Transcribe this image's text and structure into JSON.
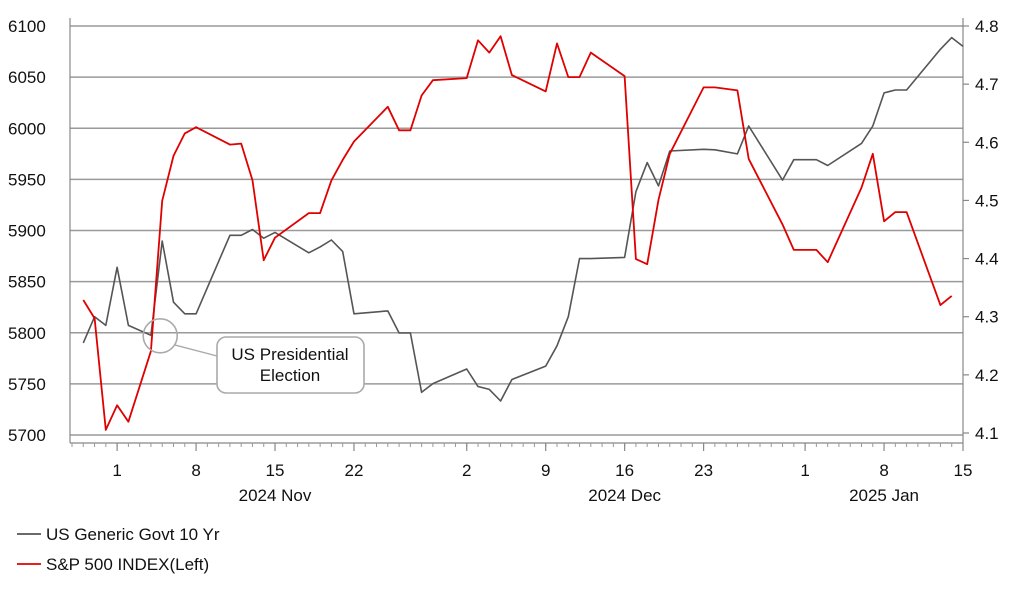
{
  "chart_data": {
    "type": "line",
    "title": "",
    "x_axis": {
      "day_labels": [
        {
          "date": "2024-11-01",
          "label": "1"
        },
        {
          "date": "2024-11-08",
          "label": "8"
        },
        {
          "date": "2024-11-15",
          "label": "15"
        },
        {
          "date": "2024-11-22",
          "label": "22"
        },
        {
          "date": "2024-12-02",
          "label": "2"
        },
        {
          "date": "2024-12-09",
          "label": "9"
        },
        {
          "date": "2024-12-16",
          "label": "16"
        },
        {
          "date": "2024-12-23",
          "label": "23"
        },
        {
          "date": "2025-01-01",
          "label": "1"
        },
        {
          "date": "2025-01-08",
          "label": "8"
        },
        {
          "date": "2025-01-15",
          "label": "15"
        }
      ],
      "month_labels": [
        {
          "date": "2024-11-15",
          "label": "2024 Nov"
        },
        {
          "date": "2024-12-16",
          "label": "2024 Dec"
        },
        {
          "date": "2025-01-08",
          "label": "2025 Jan"
        }
      ],
      "range": [
        "2024-10-28",
        "2025-01-15"
      ]
    },
    "y_left": {
      "ticks": [
        5700,
        5750,
        5800,
        5850,
        5900,
        5950,
        6000,
        6050,
        6100
      ],
      "range": [
        5690,
        6110
      ],
      "grid": true
    },
    "y_right": {
      "ticks": [
        4.1,
        4.2,
        4.3,
        4.4,
        4.5,
        4.6,
        4.7,
        4.8
      ],
      "range": [
        4.093,
        4.818
      ]
    },
    "series": [
      {
        "name": "US Generic Govt 10 Yr",
        "axis": "right",
        "color": "#555555",
        "points": [
          [
            "2024-10-29",
            4.255
          ],
          [
            "2024-10-30",
            4.3
          ],
          [
            "2024-10-31",
            4.285
          ],
          [
            "2024-11-01",
            4.385
          ],
          [
            "2024-11-02",
            4.285
          ],
          [
            "2024-11-04",
            4.268
          ],
          [
            "2024-11-05",
            4.43
          ],
          [
            "2024-11-06",
            4.325
          ],
          [
            "2024-11-07",
            4.305
          ],
          [
            "2024-11-08",
            4.305
          ],
          [
            "2024-11-11",
            4.44
          ],
          [
            "2024-11-12",
            4.44
          ],
          [
            "2024-11-13",
            4.45
          ],
          [
            "2024-11-14",
            4.435
          ],
          [
            "2024-11-15",
            4.445
          ],
          [
            "2024-11-18",
            4.41
          ],
          [
            "2024-11-19",
            4.42
          ],
          [
            "2024-11-20",
            4.432
          ],
          [
            "2024-11-21",
            4.412
          ],
          [
            "2024-11-22",
            4.305
          ],
          [
            "2024-11-25",
            4.31
          ],
          [
            "2024-11-26",
            4.272
          ],
          [
            "2024-11-27",
            4.272
          ],
          [
            "2024-11-28",
            4.17
          ],
          [
            "2024-11-29",
            4.185
          ],
          [
            "2024-12-02",
            4.21
          ],
          [
            "2024-12-03",
            4.18
          ],
          [
            "2024-12-04",
            4.175
          ],
          [
            "2024-12-05",
            4.155
          ],
          [
            "2024-12-06",
            4.192
          ],
          [
            "2024-12-09",
            4.215
          ],
          [
            "2024-12-10",
            4.25
          ],
          [
            "2024-12-11",
            4.3
          ],
          [
            "2024-12-12",
            4.4
          ],
          [
            "2024-12-13",
            4.4
          ],
          [
            "2024-12-16",
            4.402
          ],
          [
            "2024-12-17",
            4.515
          ],
          [
            "2024-12-18",
            4.565
          ],
          [
            "2024-12-19",
            4.525
          ],
          [
            "2024-12-20",
            4.585
          ],
          [
            "2024-12-23",
            4.588
          ],
          [
            "2024-12-24",
            4.587
          ],
          [
            "2024-12-26",
            4.58
          ],
          [
            "2024-12-27",
            4.628
          ],
          [
            "2024-12-30",
            4.535
          ],
          [
            "2024-12-31",
            4.57
          ],
          [
            "2025-01-02",
            4.57
          ],
          [
            "2025-01-03",
            4.56
          ],
          [
            "2025-01-06",
            4.598
          ],
          [
            "2025-01-07",
            4.628
          ],
          [
            "2025-01-08",
            4.685
          ],
          [
            "2025-01-09",
            4.69
          ],
          [
            "2025-01-10",
            4.69
          ],
          [
            "2025-01-13",
            4.76
          ],
          [
            "2025-01-14",
            4.78
          ],
          [
            "2025-01-15",
            4.765
          ]
        ]
      },
      {
        "name": "S&P 500 INDEX(Left)",
        "axis": "left",
        "color": "#e00000",
        "points": [
          [
            "2024-10-29",
            5832
          ],
          [
            "2024-10-30",
            5814
          ],
          [
            "2024-10-31",
            5705
          ],
          [
            "2024-11-01",
            5729
          ],
          [
            "2024-11-02",
            5713
          ],
          [
            "2024-11-04",
            5782
          ],
          [
            "2024-11-05",
            5929
          ],
          [
            "2024-11-06",
            5973
          ],
          [
            "2024-11-07",
            5995
          ],
          [
            "2024-11-08",
            6001
          ],
          [
            "2024-11-11",
            5984
          ],
          [
            "2024-11-12",
            5985
          ],
          [
            "2024-11-13",
            5949
          ],
          [
            "2024-11-14",
            5871
          ],
          [
            "2024-11-15",
            5893
          ],
          [
            "2024-11-18",
            5917
          ],
          [
            "2024-11-19",
            5917
          ],
          [
            "2024-11-20",
            5949
          ],
          [
            "2024-11-21",
            5969
          ],
          [
            "2024-11-22",
            5987
          ],
          [
            "2024-11-25",
            6021
          ],
          [
            "2024-11-26",
            5998
          ],
          [
            "2024-11-27",
            5998
          ],
          [
            "2024-11-28",
            6032
          ],
          [
            "2024-11-29",
            6047
          ],
          [
            "2024-12-02",
            6049
          ],
          [
            "2024-12-03",
            6086
          ],
          [
            "2024-12-04",
            6074
          ],
          [
            "2024-12-05",
            6090
          ],
          [
            "2024-12-06",
            6052
          ],
          [
            "2024-12-09",
            6036
          ],
          [
            "2024-12-10",
            6083
          ],
          [
            "2024-12-11",
            6050
          ],
          [
            "2024-12-12",
            6050
          ],
          [
            "2024-12-13",
            6074
          ],
          [
            "2024-12-16",
            6051
          ],
          [
            "2024-12-17",
            5872
          ],
          [
            "2024-12-18",
            5867
          ],
          [
            "2024-12-19",
            5930
          ],
          [
            "2024-12-20",
            5975
          ],
          [
            "2024-12-23",
            6040
          ],
          [
            "2024-12-24",
            6040
          ],
          [
            "2024-12-26",
            6037
          ],
          [
            "2024-12-27",
            5970
          ],
          [
            "2024-12-30",
            5906
          ],
          [
            "2024-12-31",
            5881
          ],
          [
            "2025-01-02",
            5881
          ],
          [
            "2025-01-03",
            5869
          ],
          [
            "2025-01-06",
            5942
          ],
          [
            "2025-01-07",
            5975
          ],
          [
            "2025-01-08",
            5909
          ],
          [
            "2025-01-09",
            5918
          ],
          [
            "2025-01-10",
            5918
          ],
          [
            "2025-01-13",
            5827
          ],
          [
            "2025-01-14",
            5836
          ]
        ]
      }
    ],
    "annotation": {
      "lines": [
        "US Presidential",
        "Election"
      ],
      "date": "2024-11-05",
      "value": 5797
    },
    "legend": {
      "placement": "bottom-left",
      "entries": [
        "US Generic Govt 10 Yr",
        "S&P 500 INDEX(Left)"
      ]
    }
  }
}
